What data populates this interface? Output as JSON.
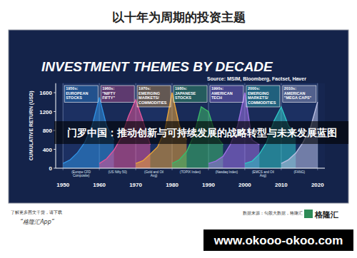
{
  "page": {
    "heading": "以十年为周期的投资主题",
    "banner": "门罗中国：推动创新与可持续发展的战略转型与未来发展蓝图",
    "footer_note": "了解更多图文干货，请下载",
    "footer_app": "“格隆汇App”",
    "source_note": "数据来源：勾股大数据，格隆汇",
    "logo": "格隆汇",
    "watermark": "www.okooo-okoo.com"
  },
  "chart_data": {
    "type": "area",
    "title": "INVESTMENT THEMES BY DECADE",
    "subtitle": "Source: MSIM, Bloomberg, Factset, Haver",
    "y_label": "CUMULATIVE RETURN (USD)",
    "x": [
      1950,
      1952,
      1954,
      1956,
      1958,
      1960,
      1962,
      1964,
      1966,
      1968,
      1970,
      1972,
      1974,
      1976,
      1978,
      1980,
      1982,
      1984,
      1986,
      1988,
      1990,
      1992,
      1994,
      1996,
      1998,
      2000,
      2002,
      2004,
      2006,
      2008,
      2010,
      2012,
      2014,
      2016,
      2018,
      2020
    ],
    "xlim": [
      1948,
      2022
    ],
    "xticks": [
      1950,
      1960,
      1970,
      1980,
      1990,
      2000,
      2010,
      2020
    ],
    "ylim": [
      0,
      1800
    ],
    "yticks": [
      0,
      400,
      800,
      1200,
      1600
    ],
    "grid": false,
    "series": [
      {
        "name": "1950s: EUROPEAN STOCKS",
        "color": "#2f8fe0",
        "values": [
          100,
          180,
          330,
          550,
          900,
          1500,
          900,
          600,
          null,
          null,
          null,
          null,
          null,
          null,
          null,
          null,
          null,
          null,
          null,
          null,
          null,
          null,
          null,
          null,
          null,
          null,
          null,
          null,
          null,
          null,
          null,
          null,
          null,
          null,
          null,
          null
        ]
      },
      {
        "name": "1960s: \"NIFTY FIFTY\"",
        "color": "#e0559a",
        "values": [
          null,
          null,
          null,
          null,
          null,
          100,
          200,
          380,
          650,
          1100,
          1450,
          1000,
          500,
          null,
          null,
          null,
          null,
          null,
          null,
          null,
          null,
          null,
          null,
          null,
          null,
          null,
          null,
          null,
          null,
          null,
          null,
          null,
          null,
          null,
          null,
          null
        ]
      },
      {
        "name": "1970s: EMERGING MARKETS/COMMODITIES",
        "color": "#e8a33a",
        "values": [
          null,
          null,
          null,
          null,
          null,
          null,
          null,
          null,
          null,
          null,
          100,
          160,
          300,
          450,
          800,
          1600,
          900,
          600,
          null,
          null,
          null,
          null,
          null,
          null,
          null,
          null,
          null,
          null,
          null,
          null,
          null,
          null,
          null,
          null,
          null,
          null
        ]
      },
      {
        "name": "1980s: JAPANESE STOCKS",
        "color": "#3cb86a",
        "values": [
          null,
          null,
          null,
          null,
          null,
          null,
          null,
          null,
          null,
          null,
          null,
          null,
          null,
          null,
          null,
          100,
          180,
          350,
          700,
          1300,
          1200,
          700,
          500,
          null,
          null,
          null,
          null,
          null,
          null,
          null,
          null,
          null,
          null,
          null,
          null,
          null
        ]
      },
      {
        "name": "1990s: AMERICAN TECH",
        "color": "#9b6fe0",
        "values": [
          null,
          null,
          null,
          null,
          null,
          null,
          null,
          null,
          null,
          null,
          null,
          null,
          null,
          null,
          null,
          null,
          null,
          null,
          null,
          null,
          100,
          150,
          250,
          500,
          900,
          1600,
          600,
          500,
          null,
          null,
          null,
          null,
          null,
          null,
          null,
          null
        ]
      },
      {
        "name": "2000s: EMERGING MARKETS/COMMODITIES",
        "color": "#2fc4c4",
        "values": [
          null,
          null,
          null,
          null,
          null,
          null,
          null,
          null,
          null,
          null,
          null,
          null,
          null,
          null,
          null,
          null,
          null,
          null,
          null,
          null,
          null,
          null,
          null,
          null,
          null,
          100,
          150,
          300,
          550,
          1000,
          1300,
          900,
          700,
          null,
          null,
          null
        ]
      },
      {
        "name": "2010s: AMERICAN \"MEGA CAPS\"",
        "color": "#b8bde0",
        "values": [
          null,
          null,
          null,
          null,
          null,
          null,
          null,
          null,
          null,
          null,
          null,
          null,
          null,
          null,
          null,
          null,
          null,
          null,
          null,
          null,
          null,
          null,
          null,
          null,
          null,
          null,
          null,
          null,
          null,
          null,
          100,
          180,
          320,
          550,
          850,
          1400
        ]
      }
    ],
    "annotations": [
      {
        "x": 1950,
        "text": "(Europe CFD Composite)"
      },
      {
        "x": 1960,
        "text": "(US Nifty 50)"
      },
      {
        "x": 1970,
        "text": "(Gold and Oil Avg)"
      },
      {
        "x": 1980,
        "text": "(TOPIX Index)"
      },
      {
        "x": 1990,
        "text": "(Nasdaq Index)"
      },
      {
        "x": 2000,
        "text": "(EMCS and Oil Avg)"
      },
      {
        "x": 2010,
        "text": "(FANG)"
      }
    ]
  }
}
